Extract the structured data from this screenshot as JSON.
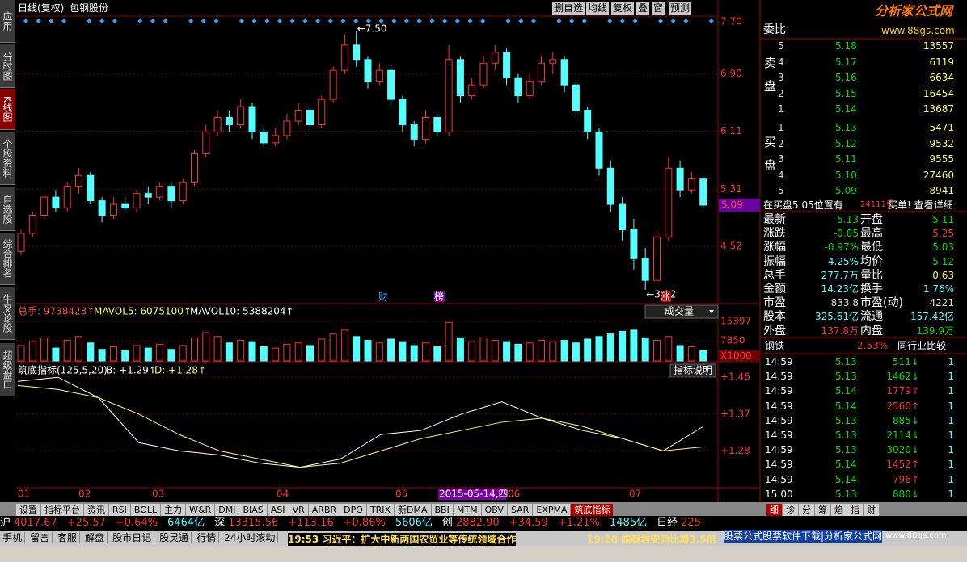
{
  "left_tabs": [
    "应用",
    "分时图",
    "K线图",
    "个股资料",
    "自选股",
    "综合排名",
    "牛叉诊股",
    "超级盘口"
  ],
  "chart_header": {
    "period": "日线(复权)",
    "stock": "包钢股份",
    "buttons": [
      "删自选",
      "均线",
      "复权",
      "叠",
      "窗",
      "预测"
    ]
  },
  "chart_data": {
    "type": "candlestick",
    "up_color": "#ff3232",
    "down_color": "#54ffff",
    "candles": [
      [
        4.45,
        4.7,
        4.75,
        4.4
      ],
      [
        4.7,
        4.95,
        5.0,
        4.65
      ],
      [
        4.95,
        5.2,
        5.25,
        4.9
      ],
      [
        5.2,
        5.05,
        5.3,
        5.0
      ],
      [
        5.05,
        5.35,
        5.4,
        5.0
      ],
      [
        5.35,
        5.5,
        5.6,
        5.25
      ],
      [
        5.5,
        5.15,
        5.55,
        5.1
      ],
      [
        5.15,
        4.95,
        5.2,
        4.85
      ],
      [
        4.95,
        5.1,
        5.2,
        4.9
      ],
      [
        5.1,
        5.05,
        5.2,
        5.0
      ],
      [
        5.05,
        5.25,
        5.3,
        5.0
      ],
      [
        5.25,
        5.2,
        5.35,
        5.1
      ],
      [
        5.2,
        5.35,
        5.4,
        5.15
      ],
      [
        5.35,
        5.15,
        5.4,
        5.05
      ],
      [
        5.15,
        5.4,
        5.45,
        5.1
      ],
      [
        5.4,
        5.8,
        5.85,
        5.35
      ],
      [
        5.8,
        6.1,
        6.2,
        5.75
      ],
      [
        6.1,
        6.3,
        6.4,
        6.05
      ],
      [
        6.3,
        6.2,
        6.4,
        6.1
      ],
      [
        6.2,
        6.45,
        6.55,
        6.15
      ],
      [
        6.45,
        6.1,
        6.5,
        6.0
      ],
      [
        6.1,
        5.95,
        6.15,
        5.9
      ],
      [
        5.95,
        6.05,
        6.15,
        5.9
      ],
      [
        6.05,
        6.25,
        6.35,
        6.0
      ],
      [
        6.25,
        6.4,
        6.5,
        6.2
      ],
      [
        6.4,
        6.2,
        6.45,
        6.1
      ],
      [
        6.2,
        6.55,
        6.6,
        6.15
      ],
      [
        6.55,
        6.95,
        7.0,
        6.5
      ],
      [
        6.95,
        7.3,
        7.45,
        6.9
      ],
      [
        7.3,
        7.1,
        7.5,
        7.0
      ],
      [
        7.1,
        6.8,
        7.15,
        6.7
      ],
      [
        6.8,
        6.95,
        7.05,
        6.75
      ],
      [
        6.95,
        6.55,
        7.0,
        6.45
      ],
      [
        6.55,
        6.2,
        6.6,
        6.1
      ],
      [
        6.2,
        6.0,
        6.25,
        5.9
      ],
      [
        6.0,
        6.3,
        6.4,
        5.95
      ],
      [
        6.3,
        6.1,
        6.35,
        6.05
      ],
      [
        6.1,
        7.1,
        7.3,
        6.05
      ],
      [
        7.1,
        6.6,
        7.15,
        6.5
      ],
      [
        6.6,
        6.75,
        6.85,
        6.55
      ],
      [
        6.75,
        7.05,
        7.15,
        6.7
      ],
      [
        7.05,
        7.2,
        7.3,
        6.95
      ],
      [
        7.2,
        6.85,
        7.25,
        6.75
      ],
      [
        6.85,
        6.6,
        6.9,
        6.5
      ],
      [
        6.6,
        6.8,
        6.9,
        6.55
      ],
      [
        6.8,
        7.05,
        7.15,
        6.75
      ],
      [
        7.05,
        7.1,
        7.2,
        6.9
      ],
      [
        7.1,
        6.75,
        7.15,
        6.65
      ],
      [
        6.75,
        6.4,
        6.8,
        6.3
      ],
      [
        6.4,
        6.1,
        6.45,
        6.0
      ],
      [
        6.1,
        5.6,
        6.15,
        5.5
      ],
      [
        5.6,
        5.1,
        5.7,
        5.0
      ],
      [
        5.1,
        4.75,
        5.2,
        4.6
      ],
      [
        4.75,
        4.35,
        4.9,
        4.2
      ],
      [
        4.35,
        4.05,
        4.5,
        3.92
      ],
      [
        4.05,
        4.65,
        4.75,
        4.0
      ],
      [
        4.65,
        5.6,
        5.75,
        4.6
      ],
      [
        5.6,
        5.3,
        5.7,
        5.2
      ],
      [
        5.3,
        5.45,
        5.55,
        5.25
      ],
      [
        5.45,
        5.09,
        5.5,
        5.05
      ]
    ],
    "ylim": [
      3.74,
      7.7
    ],
    "yticks": [
      {
        "value": 7.7,
        "label": "7.70"
      },
      {
        "value": 6.9,
        "label": "6.90"
      },
      6.11,
      5.31,
      4.52
    ],
    "last_price": 5.09,
    "high_label": "←7.50",
    "low_label": "←3.92",
    "events": [
      "财",
      "榜",
      "涨"
    ],
    "x_labels": [
      "01",
      "02",
      "03",
      "04",
      "05",
      "2015-05-14,四",
      "06",
      "07"
    ],
    "volume": {
      "legend": [
        "总手: 9738423↑",
        "MAVOL5: 6075100↑",
        "MAVOL10: 5388204↑"
      ],
      "selector": "成交量",
      "unit": "X1000",
      "values": [
        6000,
        7500,
        9000,
        5000,
        8000,
        9500,
        7000,
        4500,
        5500,
        4000,
        6000,
        5000,
        6500,
        4500,
        6000,
        9000,
        11000,
        9500,
        7000,
        8000,
        7500,
        5500,
        5000,
        6500,
        7000,
        6000,
        8500,
        10500,
        12000,
        9500,
        8000,
        7000,
        8500,
        7500,
        6000,
        7000,
        5500,
        15000,
        9000,
        7500,
        9000,
        8000,
        7500,
        6500,
        7000,
        8000,
        7500,
        8000,
        7000,
        8500,
        9500,
        10500,
        11500,
        12000,
        9000,
        8000,
        9500,
        6000,
        5500,
        4000
      ],
      "ylim": [
        0,
        21700
      ],
      "yticks": [
        15397,
        7850
      ]
    },
    "indicator": {
      "title": "筑底指标(125,5,20)",
      "legend": [
        "B: +1.29↑",
        "D: +1.28↑"
      ],
      "button": "指标说明",
      "series": [
        {
          "name": "B",
          "color": "#ffffff",
          "values": [
            1.45,
            1.46,
            1.41,
            1.3,
            1.28,
            1.27,
            1.25,
            1.24,
            1.26,
            1.32,
            1.33,
            1.37,
            1.4,
            1.36,
            1.33,
            1.31,
            1.28,
            1.34
          ]
        },
        {
          "name": "D",
          "color": "#ffff66",
          "values": [
            1.44,
            1.43,
            1.41,
            1.37,
            1.32,
            1.28,
            1.26,
            1.24,
            1.25,
            1.28,
            1.31,
            1.33,
            1.35,
            1.36,
            1.34,
            1.31,
            1.28,
            1.29
          ]
        }
      ],
      "ylim": [
        1.19,
        1.49
      ],
      "yticks": [
        {
          "value": 1.46,
          "label": "+1.46"
        },
        {
          "value": 1.37,
          "label": "+1.37"
        },
        {
          "value": 1.28,
          "label": "+1.28"
        }
      ]
    }
  },
  "logo": {
    "name": "分析家公式网",
    "url": "www.88gs.com"
  },
  "order_book": {
    "title": "委比",
    "sell_label": "卖盘",
    "buy_label": "买盘",
    "sell": [
      [
        "5",
        "5.18",
        "13557"
      ],
      [
        "4",
        "5.17",
        "6119"
      ],
      [
        "3",
        "5.16",
        "6634"
      ],
      [
        "2",
        "5.15",
        "16454"
      ],
      [
        "1",
        "5.14",
        "13687"
      ]
    ],
    "buy": [
      [
        "1",
        "5.13",
        "5471"
      ],
      [
        "2",
        "5.12",
        "9532"
      ],
      [
        "3",
        "5.11",
        "9555"
      ],
      [
        "4",
        "5.10",
        "27460"
      ],
      [
        "5",
        "5.09",
        "8941"
      ]
    ],
    "notice": [
      "在买盘5.05位置有",
      "24111手",
      "买单! 查看详细"
    ]
  },
  "quote": [
    [
      "最新",
      "5.13",
      "开盘",
      "5.11"
    ],
    [
      "涨跌",
      "-0.05",
      "最高",
      "5.25"
    ],
    [
      "涨幅",
      "-0.97%",
      "最低",
      "5.03"
    ],
    [
      "振幅",
      "4.25%",
      "均价",
      "5.12"
    ],
    [
      "总手",
      "277.7万",
      "量比",
      "0.63"
    ],
    [
      "金额",
      "14.23亿",
      "换手",
      "1.76%"
    ],
    [
      "市盈",
      "833.8",
      "市盈(动)",
      "4221"
    ],
    [
      "股本",
      "325.61亿",
      "流通",
      "157.42亿"
    ],
    [
      "外盘",
      "137.8万",
      "内盘",
      "139.9万"
    ]
  ],
  "industry": [
    "钢铁",
    "2.53%",
    "同行业比较"
  ],
  "ticks": [
    [
      "14:59",
      "5.13",
      "511↓",
      "1"
    ],
    [
      "14:59",
      "5.13",
      "1462↓",
      "1"
    ],
    [
      "14:59",
      "5.14",
      "1779↑",
      "1"
    ],
    [
      "14:59",
      "5.14",
      "2560↑",
      "1"
    ],
    [
      "14:59",
      "5.13",
      "885↓",
      "1"
    ],
    [
      "14:59",
      "5.13",
      "2114↓",
      "1"
    ],
    [
      "14:59",
      "5.13",
      "3020↓",
      "1"
    ],
    [
      "14:59",
      "5.14",
      "1452↑",
      "1"
    ],
    [
      "14:59",
      "5.14",
      "796↑",
      "1"
    ],
    [
      "15:00",
      "5.13",
      "880↓",
      "1"
    ]
  ],
  "indicator_tabs": [
    "设置",
    "指标平台",
    "资讯",
    "RSI",
    "BOLL",
    "主力",
    "W&R",
    "DMI",
    "BIAS",
    "ASI",
    "VR",
    "ARBR",
    "DPO",
    "TRIX",
    "新DMA",
    "BBI",
    "MTM",
    "OBV",
    "SAR",
    "EXPMA",
    "筑底指标"
  ],
  "panel_tabs": [
    "细",
    "诊",
    "分",
    "筹",
    "焰",
    "指",
    "财"
  ],
  "markets": [
    [
      "沪",
      "4017.67",
      "+25.57",
      "+0.64%",
      "6464亿"
    ],
    [
      "深",
      "13315.56",
      "+113.16",
      "+0.86%",
      "5606亿"
    ],
    [
      "创",
      "2882.90",
      "+34.59",
      "+1.21%",
      "1485亿"
    ],
    [
      "日经",
      "225"
    ]
  ],
  "bottom_links": [
    "手机",
    "留言",
    "客服",
    "解盘",
    "股市日记",
    "股灵通",
    "行情",
    "24小时滚动"
  ],
  "news": [
    "19:53 习近平：扩大中新两国农贸业等传统领域合作",
    "19:28 国泰君安同比增3.5倍"
  ],
  "ad": [
    "股票公式股票软件下载|分析家公式网",
    "www.88gs.com"
  ]
}
